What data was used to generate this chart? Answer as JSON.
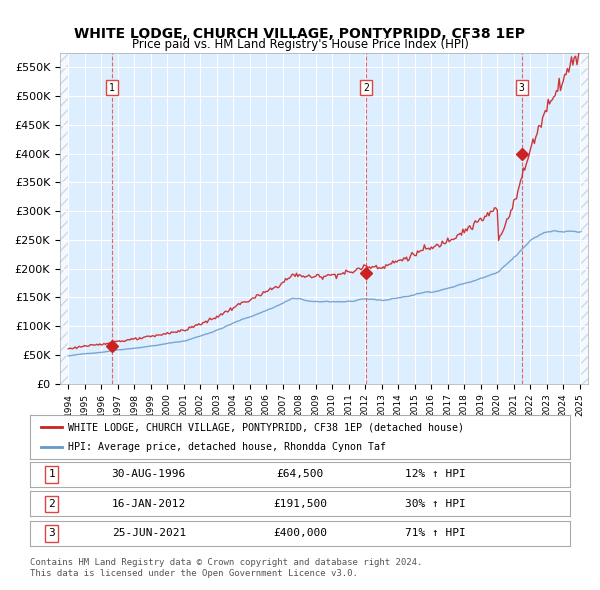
{
  "title": "WHITE LODGE, CHURCH VILLAGE, PONTYPRIDD, CF38 1EP",
  "subtitle": "Price paid vs. HM Land Registry's House Price Index (HPI)",
  "xlabel": "",
  "ylabel": "",
  "ylim": [
    0,
    575000
  ],
  "yticks": [
    0,
    50000,
    100000,
    150000,
    200000,
    250000,
    300000,
    350000,
    400000,
    450000,
    500000,
    550000
  ],
  "ytick_labels": [
    "£0",
    "£50K",
    "£100K",
    "£150K",
    "£200K",
    "£250K",
    "£300K",
    "£350K",
    "£400K",
    "£450K",
    "£500K",
    "£550K"
  ],
  "hpi_color": "#6699cc",
  "price_color": "#cc2222",
  "sale_marker_color": "#cc2222",
  "vline_color": "#dd4444",
  "background_color": "#ddeeff",
  "plot_bg": "#ddeeff",
  "legend_label_red": "WHITE LODGE, CHURCH VILLAGE, PONTYPRIDD, CF38 1EP (detached house)",
  "legend_label_blue": "HPI: Average price, detached house, Rhondda Cynon Taf",
  "sales": [
    {
      "label": "1",
      "date_num": 1996.66,
      "price": 64500,
      "pct": "12%",
      "date_str": "30-AUG-1996"
    },
    {
      "label": "2",
      "date_num": 2012.04,
      "price": 191500,
      "pct": "30%",
      "date_str": "16-JAN-2012"
    },
    {
      "label": "3",
      "date_num": 2021.48,
      "price": 400000,
      "pct": "71%",
      "date_str": "25-JUN-2021"
    }
  ],
  "footnote1": "Contains HM Land Registry data © Crown copyright and database right 2024.",
  "footnote2": "This data is licensed under the Open Government Licence v3.0.",
  "hatch_color": "#bbccdd",
  "grid_color": "#ffffff",
  "border_color": "#aaaaaa",
  "table_rows": [
    [
      "1",
      "30-AUG-1996",
      "£64,500",
      "12% ↑ HPI"
    ],
    [
      "2",
      "16-JAN-2012",
      "£191,500",
      "30% ↑ HPI"
    ],
    [
      "3",
      "25-JUN-2021",
      "£400,000",
      "71% ↑ HPI"
    ]
  ]
}
